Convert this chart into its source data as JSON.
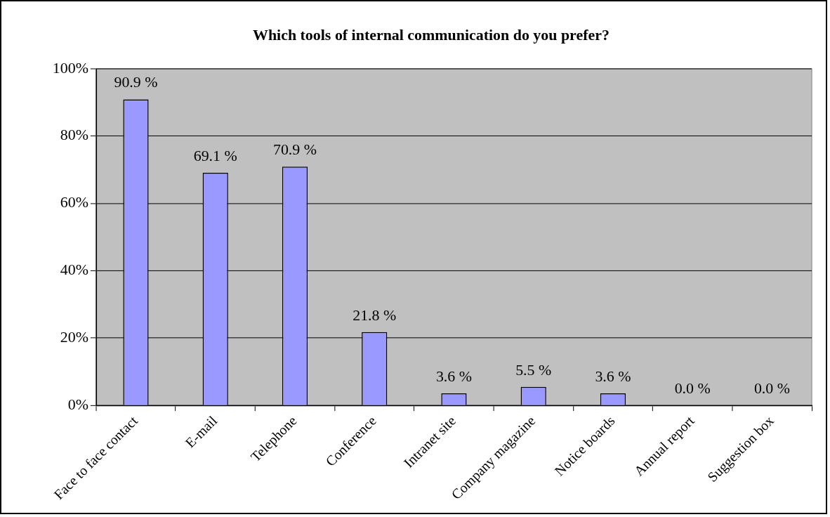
{
  "chart_data": {
    "type": "bar",
    "title": "Which tools of internal communication do you prefer?",
    "categories": [
      "Face to face contact",
      "E-mail",
      "Telephone",
      "Conference",
      "Intranet site",
      "Company magazine",
      "Notice boards",
      "Annual report",
      "Suggestion box"
    ],
    "values": [
      90.9,
      69.1,
      70.9,
      21.8,
      3.6,
      5.5,
      3.6,
      0.0,
      0.0
    ],
    "value_labels": [
      "90.9 %",
      "69.1 %",
      "70.9 %",
      "21.8 %",
      "3.6 %",
      "5.5 %",
      "3.6 %",
      "0.0 %",
      "0.0 %"
    ],
    "color": "#9999ff",
    "ylim": [
      0,
      100
    ],
    "yticks": [
      {
        "value": 0,
        "label": "0%"
      },
      {
        "value": 20,
        "label": "20%"
      },
      {
        "value": 40,
        "label": "40%"
      },
      {
        "value": 60,
        "label": "60%"
      },
      {
        "value": 80,
        "label": "80%"
      },
      {
        "value": 100,
        "label": "100%"
      }
    ],
    "grid": "y",
    "legend": false
  }
}
